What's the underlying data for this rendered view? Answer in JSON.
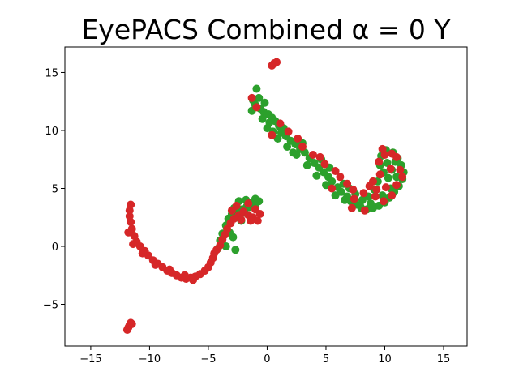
{
  "chart_data": {
    "type": "scatter",
    "title": "EyePACS Combined α = 0 Y",
    "xlabel": "",
    "ylabel": "",
    "xlim": [
      -17.2,
      17.0
    ],
    "ylim": [
      -8.6,
      17.2
    ],
    "xticks": [
      -15,
      -10,
      -5,
      0,
      5,
      10,
      15
    ],
    "yticks": [
      -5,
      0,
      5,
      10,
      15
    ],
    "xtick_labels": [
      "−15",
      "−10",
      "−5",
      "0",
      "5",
      "10",
      "15"
    ],
    "ytick_labels": [
      "−5",
      "0",
      "5",
      "10",
      "15"
    ],
    "grid": false,
    "legend": "none",
    "series": [
      {
        "color": "#2ca02c",
        "points": [
          [
            -0.9,
            13.6
          ],
          [
            -1.2,
            12.6
          ],
          [
            -1.0,
            12.2
          ],
          [
            -0.6,
            11.9
          ],
          [
            -0.3,
            11.6
          ],
          [
            0.1,
            11.4
          ],
          [
            0.4,
            11.1
          ],
          [
            -0.4,
            11.0
          ],
          [
            0.2,
            10.7
          ],
          [
            0.7,
            10.8
          ],
          [
            1.0,
            10.4
          ],
          [
            0.0,
            10.2
          ],
          [
            0.5,
            9.9
          ],
          [
            1.2,
            9.8
          ],
          [
            1.6,
            9.5
          ],
          [
            0.9,
            9.3
          ],
          [
            2.0,
            9.1
          ],
          [
            2.4,
            8.8
          ],
          [
            1.7,
            8.6
          ],
          [
            2.8,
            8.4
          ],
          [
            3.2,
            8.1
          ],
          [
            2.5,
            7.9
          ],
          [
            3.6,
            7.6
          ],
          [
            4.0,
            7.2
          ],
          [
            3.4,
            7.0
          ],
          [
            4.4,
            6.8
          ],
          [
            4.8,
            6.4
          ],
          [
            4.2,
            6.1
          ],
          [
            5.2,
            6.0
          ],
          [
            5.5,
            5.6
          ],
          [
            5.0,
            5.3
          ],
          [
            6.0,
            5.1
          ],
          [
            6.3,
            4.7
          ],
          [
            5.8,
            4.4
          ],
          [
            6.8,
            4.3
          ],
          [
            7.1,
            3.9
          ],
          [
            7.6,
            3.6
          ],
          [
            8.0,
            3.3
          ],
          [
            8.5,
            3.2
          ],
          [
            9.0,
            3.3
          ],
          [
            9.5,
            3.5
          ],
          [
            10.0,
            3.8
          ],
          [
            10.4,
            4.2
          ],
          [
            10.8,
            4.7
          ],
          [
            11.2,
            5.2
          ],
          [
            11.5,
            5.8
          ],
          [
            11.6,
            6.4
          ],
          [
            11.4,
            7.0
          ],
          [
            11.1,
            7.6
          ],
          [
            10.7,
            8.1
          ],
          [
            10.1,
            8.3
          ],
          [
            9.7,
            7.8
          ],
          [
            9.6,
            7.0
          ],
          [
            9.9,
            6.4
          ],
          [
            10.3,
            5.9
          ],
          [
            10.6,
            6.6
          ],
          [
            10.9,
            7.3
          ],
          [
            9.4,
            5.6
          ],
          [
            9.1,
            4.9
          ],
          [
            8.6,
            4.3
          ],
          [
            8.1,
            4.0
          ],
          [
            7.5,
            4.5
          ],
          [
            7.0,
            5.0
          ],
          [
            6.5,
            5.4
          ],
          [
            9.8,
            4.4
          ],
          [
            10.5,
            5.0
          ],
          [
            8.8,
            3.7
          ],
          [
            7.9,
            3.5
          ],
          [
            4.6,
            7.5
          ],
          [
            3.0,
            8.9
          ],
          [
            1.4,
            10.2
          ],
          [
            -0.7,
            12.8
          ],
          [
            -1.3,
            11.7
          ],
          [
            -0.2,
            12.4
          ],
          [
            2.2,
            8.1
          ],
          [
            5.3,
            6.8
          ],
          [
            6.6,
            4.0
          ],
          [
            11.0,
            6.0
          ],
          [
            10.2,
            7.2
          ],
          [
            -1.0,
            4.1
          ],
          [
            -1.3,
            3.8
          ],
          [
            -1.7,
            3.5
          ],
          [
            -2.1,
            3.2
          ],
          [
            -2.4,
            3.9
          ],
          [
            -2.8,
            3.3
          ],
          [
            -3.0,
            2.8
          ],
          [
            -3.3,
            2.4
          ],
          [
            -2.6,
            2.6
          ],
          [
            -1.9,
            2.9
          ],
          [
            -1.5,
            3.4
          ],
          [
            -1.0,
            3.6
          ],
          [
            -0.7,
            3.9
          ],
          [
            -2.2,
            2.2
          ],
          [
            -3.5,
            1.8
          ],
          [
            -3.2,
            1.2
          ],
          [
            -2.9,
            0.8
          ],
          [
            -3.8,
            1.1
          ],
          [
            -4.0,
            0.5
          ],
          [
            -3.5,
            0.0
          ],
          [
            -2.7,
            -0.3
          ],
          [
            -4.2,
            -0.2
          ],
          [
            -2.4,
            3.1
          ],
          [
            -1.8,
            4.0
          ]
        ]
      },
      {
        "color": "#d62728",
        "points": [
          [
            0.4,
            15.6
          ],
          [
            0.6,
            15.8
          ],
          [
            0.8,
            15.9
          ],
          [
            -1.3,
            12.8
          ],
          [
            -0.9,
            12.0
          ],
          [
            1.1,
            10.6
          ],
          [
            0.4,
            9.6
          ],
          [
            1.8,
            9.9
          ],
          [
            2.6,
            9.3
          ],
          [
            3.0,
            8.6
          ],
          [
            3.9,
            7.9
          ],
          [
            4.5,
            7.7
          ],
          [
            4.9,
            7.1
          ],
          [
            5.8,
            6.5
          ],
          [
            6.2,
            6.0
          ],
          [
            5.5,
            5.0
          ],
          [
            6.8,
            5.4
          ],
          [
            7.3,
            4.9
          ],
          [
            8.2,
            4.6
          ],
          [
            7.4,
            4.1
          ],
          [
            8.7,
            5.2
          ],
          [
            9.2,
            4.3
          ],
          [
            9.0,
            5.6
          ],
          [
            9.6,
            6.2
          ],
          [
            10.1,
            5.1
          ],
          [
            10.5,
            6.7
          ],
          [
            9.5,
            7.3
          ],
          [
            10.0,
            7.9
          ],
          [
            9.8,
            8.4
          ],
          [
            10.6,
            8.0
          ],
          [
            11.0,
            7.7
          ],
          [
            11.3,
            6.6
          ],
          [
            11.5,
            6.0
          ],
          [
            11.0,
            5.3
          ],
          [
            10.6,
            4.4
          ],
          [
            9.9,
            3.9
          ],
          [
            8.3,
            3.1
          ],
          [
            7.2,
            3.3
          ],
          [
            9.3,
            4.9
          ],
          [
            -6.5,
            -2.7
          ],
          [
            -6.9,
            -2.8
          ],
          [
            -7.3,
            -2.7
          ],
          [
            -7.7,
            -2.5
          ],
          [
            -8.1,
            -2.3
          ],
          [
            -8.5,
            -2.1
          ],
          [
            -8.9,
            -1.8
          ],
          [
            -9.3,
            -1.5
          ],
          [
            -9.7,
            -1.2
          ],
          [
            -10.1,
            -0.8
          ],
          [
            -10.4,
            -0.4
          ],
          [
            -10.8,
            0.0
          ],
          [
            -11.1,
            0.4
          ],
          [
            -11.3,
            0.9
          ],
          [
            -11.5,
            1.5
          ],
          [
            -11.6,
            2.1
          ],
          [
            -11.7,
            2.6
          ],
          [
            -11.7,
            3.1
          ],
          [
            -11.6,
            3.6
          ],
          [
            -6.1,
            -2.6
          ],
          [
            -5.7,
            -2.4
          ],
          [
            -5.3,
            -2.1
          ],
          [
            -5.0,
            -1.8
          ],
          [
            -4.8,
            -1.4
          ],
          [
            -4.6,
            -1.0
          ],
          [
            -4.5,
            -0.6
          ],
          [
            -4.3,
            -0.3
          ],
          [
            -4.0,
            0.1
          ],
          [
            -3.8,
            0.6
          ],
          [
            -3.6,
            1.0
          ],
          [
            -3.4,
            1.5
          ],
          [
            -3.1,
            2.0
          ],
          [
            -2.8,
            2.4
          ],
          [
            -2.4,
            2.7
          ],
          [
            -2.0,
            3.0
          ],
          [
            -1.6,
            2.7
          ],
          [
            -1.2,
            2.5
          ],
          [
            -0.8,
            2.2
          ],
          [
            -0.6,
            2.8
          ],
          [
            -1.0,
            3.2
          ],
          [
            -1.6,
            3.7
          ],
          [
            -2.6,
            3.5
          ],
          [
            -3.0,
            3.1
          ],
          [
            -2.2,
            2.3
          ],
          [
            -1.4,
            2.2
          ],
          [
            -6.3,
            -2.9
          ],
          [
            -7.0,
            -2.5
          ],
          [
            -8.3,
            -2.0
          ],
          [
            -9.5,
            -1.6
          ],
          [
            -10.6,
            -0.6
          ],
          [
            -11.4,
            0.2
          ],
          [
            -11.8,
            1.2
          ],
          [
            -11.6,
            -6.6
          ],
          [
            -11.7,
            -6.8
          ],
          [
            -11.8,
            -7.0
          ],
          [
            -11.9,
            -7.2
          ],
          [
            -11.5,
            -6.7
          ]
        ]
      }
    ]
  }
}
